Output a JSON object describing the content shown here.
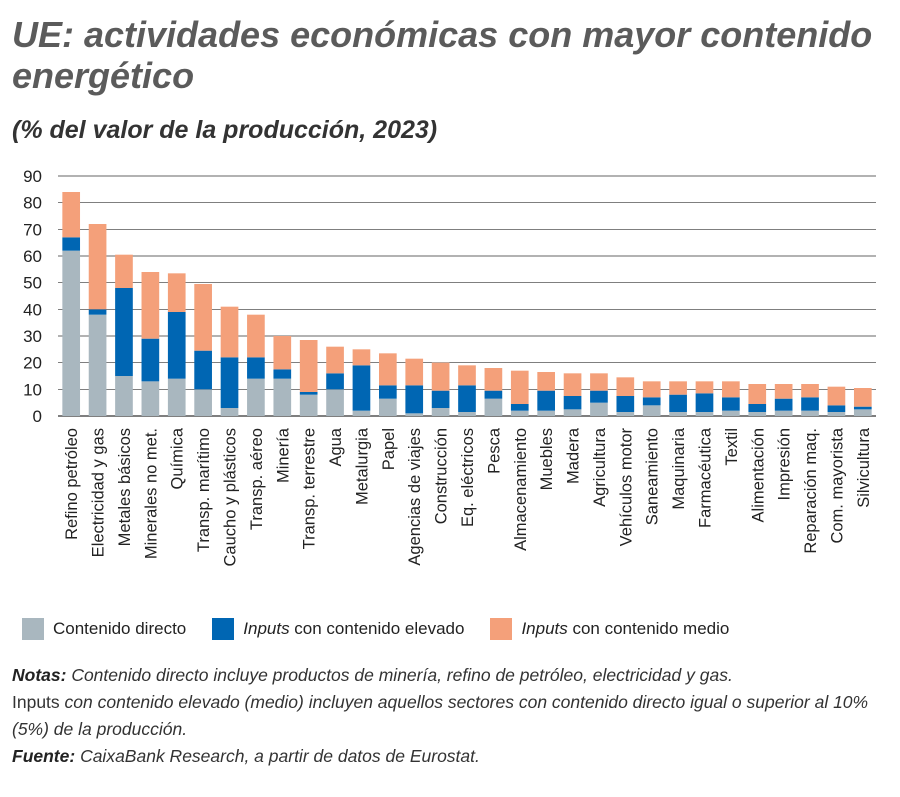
{
  "title": "UE: actividades económicas con mayor contenido energético",
  "subtitle": "(% del valor de la producción, 2023)",
  "legend": {
    "direct": "Contenido directo",
    "high_em": "Inputs",
    "high_rest": " con contenido elevado",
    "medium_em": "Inputs",
    "medium_rest": " con contenido medio"
  },
  "notes": {
    "notas_label": "Notas:",
    "notas_text": " Contenido directo incluye productos de minería, refino de petróleo, electricidad y gas.",
    "inputs_word": "Inputs",
    "inputs_text": " con contenido elevado (medio) incluyen aquellos sectores con contenido directo igual o superior al 10% (5%) de la producción.",
    "fuente_label": "Fuente:",
    "fuente_text": " CaixaBank Research, a partir de datos de Eurostat."
  },
  "colors": {
    "direct": "#a9b7bf",
    "high": "#0066b3",
    "medium": "#f4a07a",
    "grid": "#333333"
  },
  "chart_data": {
    "type": "bar",
    "stacked": true,
    "ylim": [
      0,
      90
    ],
    "yticks": [
      0,
      10,
      20,
      30,
      40,
      50,
      60,
      70,
      80,
      90
    ],
    "grid": true,
    "legend_position": "bottom",
    "categories": [
      "Refino petróleo",
      "Electricidad y gas",
      "Metales básicos",
      "Minerales no met.",
      "Química",
      "Transp. marítimo",
      "Caucho y plásticos",
      "Transp. aéreo",
      "Minería",
      "Transp. terrestre",
      "Agua",
      "Metalurgia",
      "Papel",
      "Agencias de viajes",
      "Construcción",
      "Eq. eléctricos",
      "Pesca",
      "Almacenamiento",
      "Muebles",
      "Madera",
      "Agricultura",
      "Vehículos motor",
      "Saneamiento",
      "Maquinaria",
      "Farmacéutica",
      "Textil",
      "Alimentación",
      "Impresión",
      "Reparación maq.",
      "Com. mayorista",
      "Silvicultura"
    ],
    "series": [
      {
        "name": "Contenido directo",
        "values": [
          62,
          38,
          15,
          13,
          14,
          10,
          3,
          14,
          14,
          8,
          10,
          2,
          6.5,
          1,
          3,
          1.5,
          6.5,
          2,
          2,
          2.5,
          5,
          1.5,
          4,
          1.5,
          1.5,
          2,
          1.5,
          2,
          2,
          1.5,
          2.5
        ]
      },
      {
        "name": "Inputs con contenido elevado",
        "values": [
          5,
          2,
          33,
          16,
          25,
          14.5,
          19,
          8,
          3.5,
          1,
          6,
          17,
          5,
          10.5,
          6.5,
          10,
          3,
          2.5,
          7.5,
          5,
          4.5,
          6,
          3,
          6.5,
          7,
          5,
          3,
          4.5,
          5,
          2.5,
          1
        ]
      },
      {
        "name": "Inputs con contenido medio",
        "values": [
          17,
          32,
          12.5,
          25,
          14.5,
          25,
          19,
          16,
          12.5,
          19.5,
          10,
          6,
          12,
          10,
          10.5,
          7.5,
          8.5,
          12.5,
          7,
          8.5,
          6.5,
          7,
          6,
          5,
          4.5,
          6,
          7.5,
          5.5,
          5,
          7,
          7
        ]
      }
    ]
  }
}
